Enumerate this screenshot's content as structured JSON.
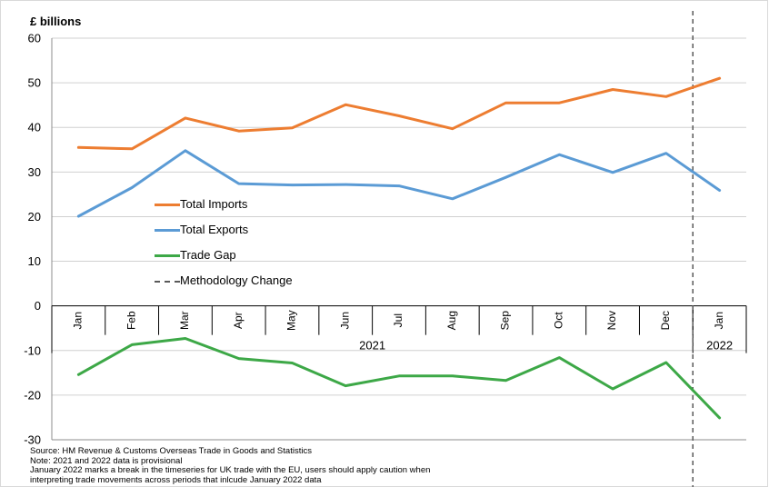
{
  "chart_data": {
    "type": "line",
    "unit_label": "£ billions",
    "categories": [
      "Jan",
      "Feb",
      "Mar",
      "Apr",
      "May",
      "Jun",
      "Jul",
      "Aug",
      "Sep",
      "Oct",
      "Nov",
      "Dec",
      "Jan"
    ],
    "year_groups": [
      {
        "label": "2021",
        "count": 12
      },
      {
        "label": "2022",
        "count": 1
      }
    ],
    "ylim": [
      -30,
      60
    ],
    "yticks": [
      -30,
      -20,
      -10,
      0,
      10,
      20,
      30,
      40,
      50,
      60
    ],
    "grid": true,
    "series": [
      {
        "name": "Total Imports",
        "color": "#ED7D31",
        "values": [
          35.5,
          35.2,
          42.1,
          39.2,
          39.9,
          45.1,
          42.6,
          39.7,
          45.5,
          45.5,
          48.5,
          46.9,
          51.0
        ]
      },
      {
        "name": "Total Exports",
        "color": "#5B9BD5",
        "values": [
          20.1,
          26.5,
          34.8,
          27.4,
          27.1,
          27.2,
          26.9,
          24.0,
          28.8,
          33.9,
          29.9,
          34.2,
          25.9
        ]
      },
      {
        "name": "Trade Gap",
        "color": "#3DA847",
        "values": [
          -15.4,
          -8.7,
          -7.3,
          -11.8,
          -12.8,
          -17.9,
          -15.7,
          -15.7,
          -16.7,
          -11.6,
          -18.6,
          -12.7,
          -25.1
        ]
      }
    ],
    "methodology_change": {
      "label": "Methodology Change",
      "after_index": 11,
      "color": "#595959"
    },
    "legend_position": "middle-left"
  },
  "notes": [
    "Source:  HM Revenue & Customs Overseas Trade in Goods and Statistics",
    "Note: 2021 and 2022 data is provisional",
    "January 2022 marks a break in the timeseries for UK trade with the EU, users should apply caution when",
    "interpreting trade movements across periods that inlcude  January  2022 data"
  ]
}
